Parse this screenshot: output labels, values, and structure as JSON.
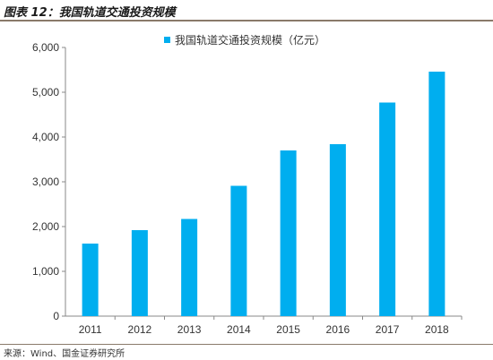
{
  "header": {
    "title": "图表 12：我国轨道交通投资规模"
  },
  "footer": {
    "source": "来源：Wind、国金证券研究所"
  },
  "colors": {
    "bar": "#00AEEF",
    "axis": "#888888"
  },
  "chart_data": {
    "type": "bar",
    "categories": [
      "2011",
      "2012",
      "2013",
      "2014",
      "2015",
      "2016",
      "2017",
      "2018"
    ],
    "series": [
      {
        "name": "我国轨道交通投资规模（亿元）",
        "values": [
          1620,
          1920,
          2170,
          2910,
          3700,
          3840,
          4770,
          5460
        ]
      }
    ],
    "ylim": [
      0,
      6000
    ],
    "yticks": [
      0,
      1000,
      2000,
      3000,
      4000,
      5000,
      6000
    ],
    "ytick_labels": [
      "0",
      "1,000",
      "2,000",
      "3,000",
      "4,000",
      "5,000",
      "6,000"
    ],
    "legend": "top-center",
    "grid": false
  }
}
